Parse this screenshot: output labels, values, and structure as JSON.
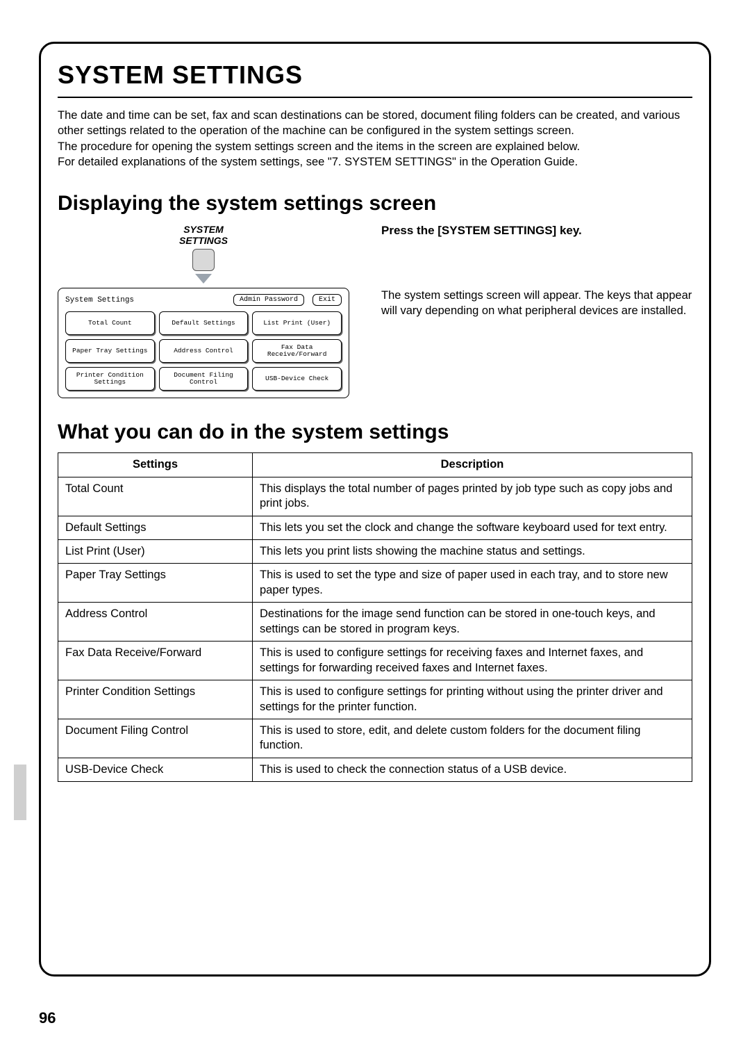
{
  "page": {
    "title": "SYSTEM SETTINGS",
    "number": "96"
  },
  "intro": {
    "p1": "The date and time can be set, fax and scan destinations can be stored, document filing folders can be created, and various other settings related to the operation of the machine can be configured in the system settings screen.",
    "p2": "The procedure for opening the system settings screen and the items in the screen are explained below.",
    "p3": "For detailed explanations of the system settings, see \"7. SYSTEM SETTINGS\" in the Operation Guide."
  },
  "section1": {
    "heading": "Displaying the system settings screen",
    "key_label_line1": "SYSTEM",
    "key_label_line2": "SETTINGS",
    "screen": {
      "title": "System Settings",
      "admin_btn": "Admin Password",
      "exit_btn": "Exit",
      "buttons": [
        "Total Count",
        "Default Settings",
        "List Print (User)",
        "Paper Tray Settings",
        "Address Control",
        "Fax Data Receive/Forward",
        "Printer Condition Settings",
        "Document Filing Control",
        "USB-Device Check"
      ]
    },
    "step_title": "Press the [SYSTEM SETTINGS] key.",
    "step_body": "The system settings screen will appear. The keys that appear will vary depending on what peripheral devices are installed."
  },
  "section2": {
    "heading": "What you can do in the system settings",
    "table": {
      "col1": "Settings",
      "col2": "Description",
      "rows": [
        {
          "s": "Total Count",
          "d": "This displays the total number of pages printed by job type such as copy jobs and print jobs."
        },
        {
          "s": "Default Settings",
          "d": "This lets you set the clock and change the software keyboard used for text entry."
        },
        {
          "s": "List Print (User)",
          "d": "This lets you print lists showing the machine status and settings."
        },
        {
          "s": "Paper Tray Settings",
          "d": "This is used to set the type and size of paper used in each tray, and to store new paper types."
        },
        {
          "s": "Address Control",
          "d": "Destinations for the image send function can be stored in one-touch keys, and settings can be stored in program keys."
        },
        {
          "s": "Fax Data Receive/Forward",
          "d": "This is used to configure settings for receiving faxes and Internet faxes, and settings for forwarding received faxes and Internet faxes."
        },
        {
          "s": "Printer Condition Settings",
          "d": "This is used to configure settings for printing without using the printer driver and settings for the printer function."
        },
        {
          "s": "Document Filing Control",
          "d": "This is used to store, edit, and delete custom folders for the document filing function."
        },
        {
          "s": "USB-Device Check",
          "d": "This is used to check the connection status of a USB device."
        }
      ]
    }
  },
  "style": {
    "page_bg": "#ffffff",
    "border_color": "#000000",
    "key_fill": "#d9d9d9",
    "arrow_fill": "#9aa3ad",
    "tab_fill": "#cfcfcf",
    "title_fontsize": 36,
    "heading_fontsize": 30,
    "body_fontsize": 16.5,
    "mono_fontsize": 10
  }
}
